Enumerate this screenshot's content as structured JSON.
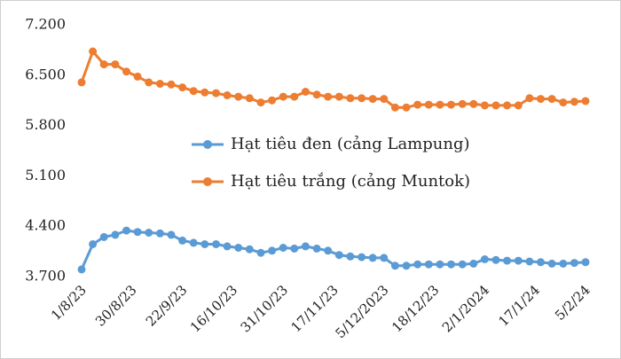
{
  "chart_data": {
    "type": "line",
    "title": "",
    "xlabel": "",
    "ylabel": "",
    "ylim": [
      3700,
      7200
    ],
    "y_ticks": [
      3700,
      4400,
      5100,
      5800,
      6500,
      7200
    ],
    "y_tick_labels": [
      "3.700",
      "4.400",
      "5.100",
      "5.800",
      "6.500",
      "7.200"
    ],
    "x_tick_labels": [
      "1/8/23",
      "30/8/23",
      "22/9/23",
      "16/10/23",
      "31/10/23",
      "17/11/23",
      "5/12/2023",
      "18/12/23",
      "2/1/2024",
      "17/1/24",
      "5/2/24"
    ],
    "x_tick_positions": [
      0,
      4.5,
      9,
      13.5,
      18,
      22.5,
      27,
      31.5,
      36,
      40.5,
      45
    ],
    "grid": false,
    "legend_position": "middle-center",
    "x": [
      0,
      1,
      2,
      3,
      4,
      5,
      6,
      7,
      8,
      9,
      10,
      11,
      12,
      13,
      14,
      15,
      16,
      17,
      18,
      19,
      20,
      21,
      22,
      23,
      24,
      25,
      26,
      27,
      28,
      29,
      30,
      31,
      32,
      33,
      34,
      35,
      36,
      37,
      38,
      39,
      40,
      41,
      42,
      43,
      44,
      45
    ],
    "series": [
      {
        "name": "Hạt tiêu đen (cảng Lampung)",
        "color": "#5b9bd5",
        "values": [
          3800,
          4150,
          4250,
          4280,
          4340,
          4320,
          4310,
          4300,
          4280,
          4200,
          4170,
          4150,
          4150,
          4120,
          4100,
          4080,
          4030,
          4060,
          4100,
          4090,
          4120,
          4090,
          4060,
          4000,
          3980,
          3970,
          3960,
          3960,
          3850,
          3850,
          3870,
          3870,
          3870,
          3870,
          3870,
          3880,
          3940,
          3930,
          3920,
          3920,
          3910,
          3900,
          3880,
          3880,
          3890,
          3900
        ]
      },
      {
        "name": "Hạt tiêu trắng (cảng Muntok)",
        "color": "#ed7d31",
        "values": [
          6400,
          6830,
          6650,
          6650,
          6550,
          6480,
          6400,
          6380,
          6370,
          6330,
          6280,
          6260,
          6250,
          6220,
          6200,
          6180,
          6120,
          6150,
          6200,
          6200,
          6270,
          6230,
          6200,
          6200,
          6180,
          6180,
          6170,
          6170,
          6050,
          6050,
          6090,
          6090,
          6090,
          6090,
          6100,
          6100,
          6080,
          6080,
          6080,
          6080,
          6180,
          6170,
          6170,
          6120,
          6130,
          6140
        ]
      }
    ]
  }
}
